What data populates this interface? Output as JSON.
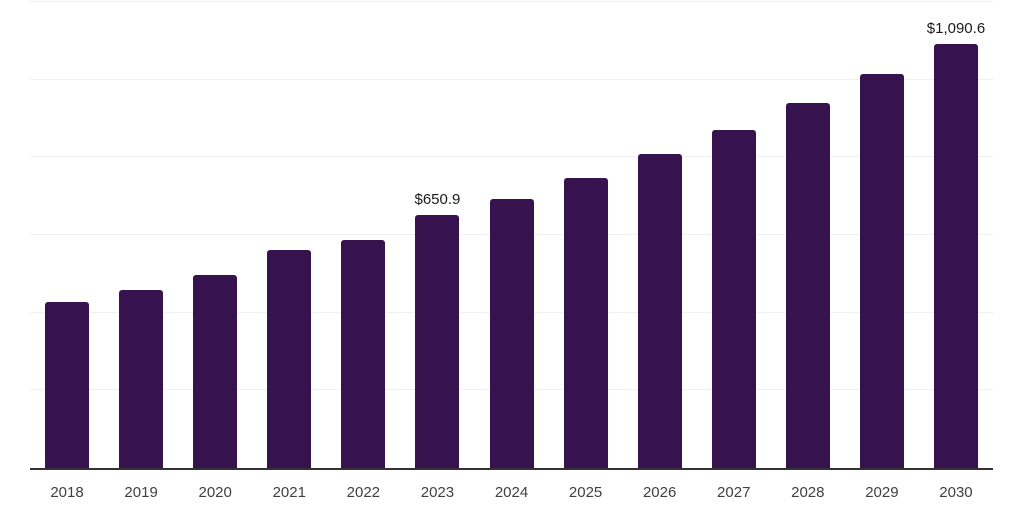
{
  "chart_data": {
    "type": "bar",
    "title": "",
    "xlabel": "",
    "ylabel": "",
    "categories": [
      "2018",
      "2019",
      "2020",
      "2021",
      "2022",
      "2023",
      "2024",
      "2025",
      "2026",
      "2027",
      "2028",
      "2029",
      "2030"
    ],
    "values": [
      427,
      459,
      496,
      562,
      586,
      650.9,
      694,
      748,
      809,
      871,
      940,
      1014,
      1090.6
    ],
    "data_labels": [
      "",
      "",
      "",
      "",
      "",
      "$650.9",
      "",
      "",
      "",
      "",
      "",
      "",
      "$1,090.6"
    ],
    "ylim": [
      0,
      1200
    ],
    "grid_step": 200,
    "grid": "horizontal",
    "legend": "none",
    "colors": {
      "bar": "#36124e",
      "gridline": "#f0f0f0",
      "axis_line": "#333333",
      "x_label_text": "#404040",
      "data_label_text": "#1a1a1a",
      "background": "#ffffff"
    }
  }
}
